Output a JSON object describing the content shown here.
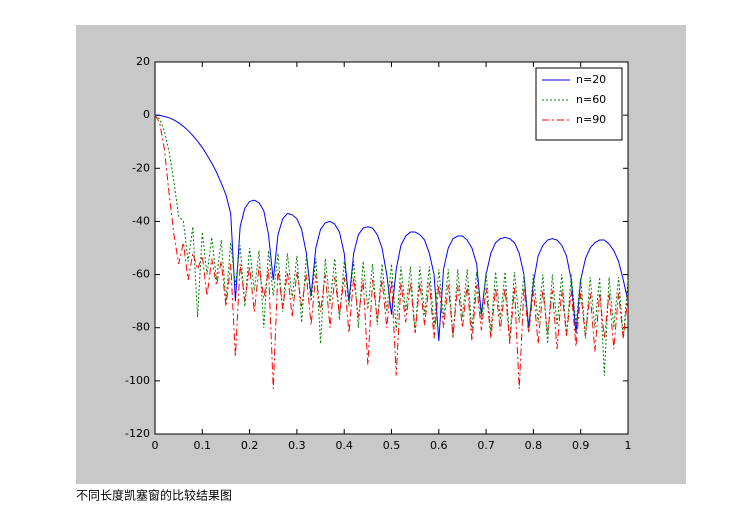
{
  "chart_data": {
    "type": "line",
    "caption": "不同长度凯塞窗的比较结果图",
    "x": [
      0,
      0.01,
      0.02,
      0.03,
      0.04,
      0.05,
      0.06,
      0.07,
      0.08,
      0.09,
      0.1,
      0.11,
      0.12,
      0.13,
      0.14,
      0.15,
      0.16,
      0.17,
      0.18,
      0.19,
      0.2,
      0.21,
      0.22,
      0.23,
      0.24,
      0.25,
      0.26,
      0.27,
      0.28,
      0.29,
      0.3,
      0.31,
      0.32,
      0.33,
      0.34,
      0.35,
      0.36,
      0.37,
      0.38,
      0.39,
      0.4,
      0.41,
      0.42,
      0.43,
      0.44,
      0.45,
      0.46,
      0.47,
      0.48,
      0.49,
      0.5,
      0.51,
      0.52,
      0.53,
      0.54,
      0.55,
      0.56,
      0.57,
      0.58,
      0.59,
      0.6,
      0.61,
      0.62,
      0.63,
      0.64,
      0.65,
      0.66,
      0.67,
      0.68,
      0.69,
      0.7,
      0.71,
      0.72,
      0.73,
      0.74,
      0.75,
      0.76,
      0.77,
      0.78,
      0.79,
      0.8,
      0.81,
      0.82,
      0.83,
      0.84,
      0.85,
      0.86,
      0.87,
      0.88,
      0.89,
      0.9,
      0.91,
      0.92,
      0.93,
      0.94,
      0.95,
      0.96,
      0.97,
      0.98,
      0.99,
      1
    ],
    "series": [
      {
        "name": "n=20",
        "color": "#0000ff",
        "linestyle": "-",
        "values": [
          0,
          -0.1,
          -0.5,
          -1,
          -1.8,
          -2.9,
          -4.2,
          -5.8,
          -7.7,
          -9.8,
          -12.2,
          -15,
          -18,
          -21.5,
          -25.5,
          -30,
          -37,
          -70,
          -42,
          -35,
          -32.5,
          -32,
          -33,
          -36,
          -45,
          -62,
          -45,
          -39,
          -37,
          -37.5,
          -39,
          -43,
          -52,
          -68,
          -50,
          -43,
          -40.5,
          -40,
          -41,
          -44,
          -52,
          -70,
          -52,
          -45,
          -42.5,
          -42,
          -42.5,
          -45,
          -50,
          -60,
          -75,
          -58,
          -49,
          -45.5,
          -44,
          -44,
          -45,
          -47,
          -52,
          -60,
          -85,
          -58,
          -50,
          -46.5,
          -45.5,
          -45.5,
          -47,
          -50,
          -56,
          -75,
          -60,
          -52,
          -48,
          -46.5,
          -46,
          -46.5,
          -48,
          -52,
          -60,
          -80,
          -63,
          -53,
          -49,
          -47,
          -46.5,
          -47,
          -49,
          -53,
          -62,
          -82,
          -62,
          -54,
          -50,
          -48,
          -47,
          -47,
          -48.5,
          -51,
          -55,
          -62,
          -70
        ]
      },
      {
        "name": "n=60",
        "color": "#008000",
        "linestyle": ":",
        "values": [
          0,
          -1.5,
          -6,
          -14,
          -25,
          -38,
          -40,
          -55,
          -42,
          -76,
          -44,
          -60,
          -46,
          -62,
          -47,
          -70,
          -48,
          -64,
          -49,
          -72,
          -50,
          -66,
          -51,
          -80,
          -51,
          -68,
          -52,
          -74,
          -52,
          -69,
          -53,
          -78,
          -53,
          -70,
          -54,
          -86,
          -54,
          -71,
          -54,
          -77,
          -55,
          -72,
          -55,
          -80,
          -55,
          -73,
          -56,
          -79,
          -56,
          -74,
          -56,
          -81,
          -57,
          -74,
          -57,
          -82,
          -57,
          -75,
          -57,
          -80,
          -58,
          -76,
          -58,
          -84,
          -58,
          -76,
          -58,
          -81,
          -59,
          -77,
          -59,
          -82,
          -59,
          -77,
          -59,
          -85,
          -59,
          -78,
          -60,
          -82,
          -60,
          -78,
          -60,
          -86,
          -60,
          -79,
          -60,
          -83,
          -60,
          -79,
          -61,
          -84,
          -61,
          -80,
          -61,
          -98,
          -61,
          -80,
          -61,
          -84,
          -62
        ]
      },
      {
        "name": "n=90",
        "color": "#ff0000",
        "linestyle": "-.",
        "values": [
          0,
          -3,
          -13,
          -30,
          -45,
          -56,
          -48,
          -62,
          -52,
          -58,
          -53,
          -68,
          -54,
          -64,
          -55,
          -72,
          -56,
          -91,
          -56,
          -70,
          -57,
          -74,
          -57,
          -69,
          -58,
          -103,
          -58,
          -73,
          -59,
          -76,
          -59,
          -72,
          -60,
          -79,
          -60,
          -74,
          -60,
          -80,
          -61,
          -75,
          -61,
          -82,
          -61,
          -76,
          -62,
          -94,
          -62,
          -77,
          -62,
          -80,
          -62,
          -98,
          -63,
          -78,
          -63,
          -82,
          -63,
          -79,
          -63,
          -84,
          -64,
          -80,
          -64,
          -83,
          -64,
          -80,
          -64,
          -85,
          -64,
          -81,
          -65,
          -84,
          -65,
          -81,
          -65,
          -86,
          -65,
          -103,
          -65,
          -82,
          -66,
          -86,
          -66,
          -82,
          -66,
          -88,
          -66,
          -83,
          -66,
          -87,
          -67,
          -83,
          -67,
          -89,
          -67,
          -84,
          -67,
          -88,
          -67,
          -84,
          -68
        ]
      }
    ],
    "xlim": [
      0,
      1
    ],
    "xticks": [
      0,
      0.1,
      0.2,
      0.3,
      0.4,
      0.5,
      0.6,
      0.7,
      0.8,
      0.9,
      1
    ],
    "ylim": [
      -120,
      20
    ],
    "yticks": [
      20,
      0,
      -20,
      -40,
      -60,
      -80,
      -100,
      -120
    ],
    "grid": false,
    "legend": "top-right"
  }
}
